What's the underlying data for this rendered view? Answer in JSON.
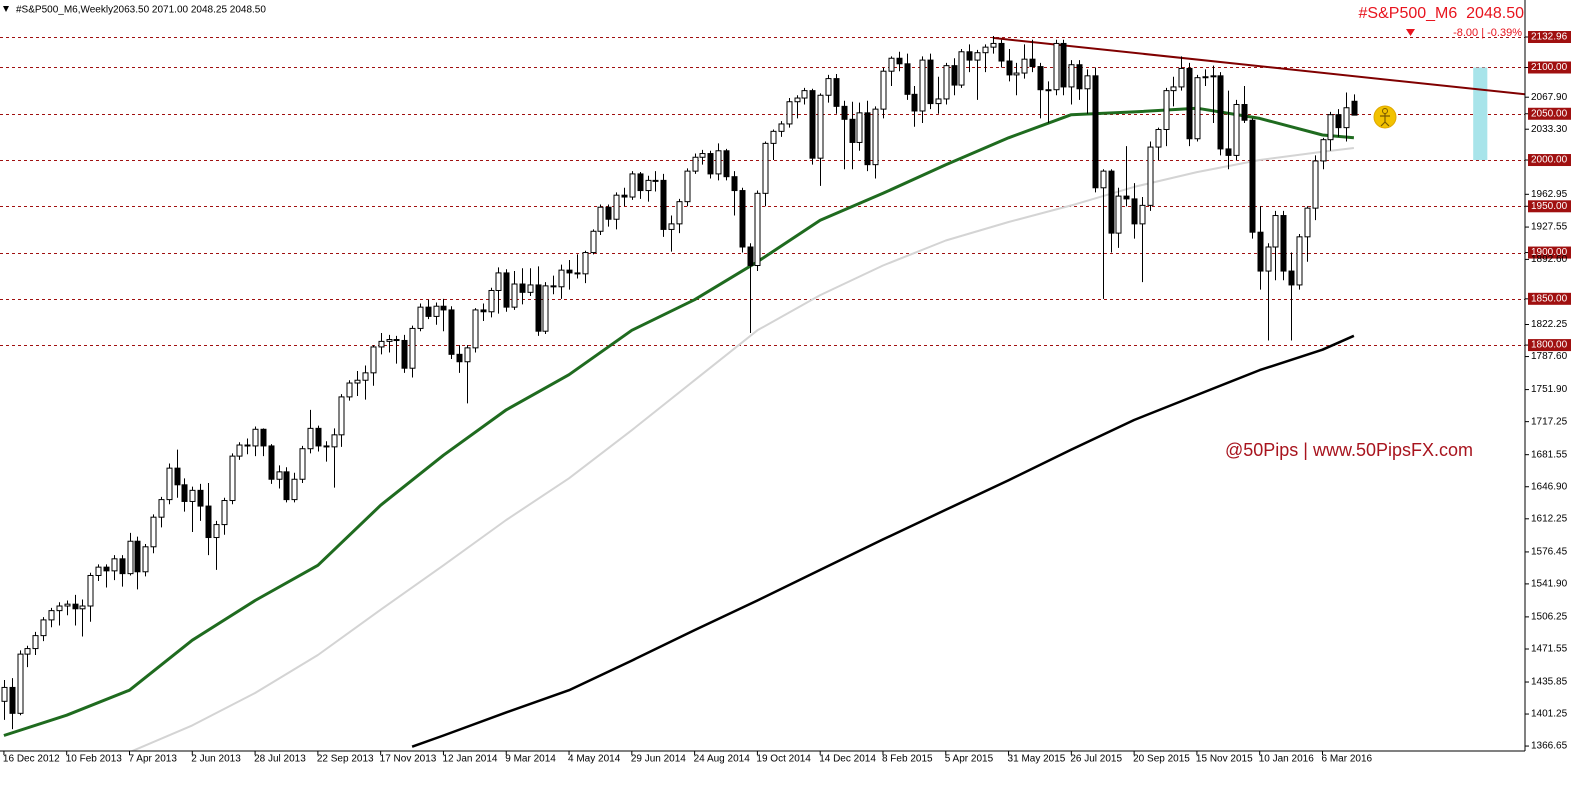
{
  "chart_data": {
    "type": "candlestick",
    "title": "#S&P500_M6,Weekly",
    "quote_ohlc": "2063.50 2071.00 2048.25 2048.50",
    "quote_label": "#S&P500_M6  2048.50",
    "quote_change": "-8.00 | -0.39%",
    "watermark": "@50Pips | www.50PipsFX.com",
    "xlim": [
      -0.5,
      193.8
    ],
    "ylim": [
      1361.3,
      2172.95
    ],
    "xticks": [
      {
        "value": 0,
        "label": "16 Dec 2012"
      },
      {
        "value": 8,
        "label": "10 Feb 2013"
      },
      {
        "value": 16,
        "label": "7 Apr 2013"
      },
      {
        "value": 24,
        "label": "2 Jun 2013"
      },
      {
        "value": 32,
        "label": "28 Jul 2013"
      },
      {
        "value": 40,
        "label": "22 Sep 2013"
      },
      {
        "value": 48,
        "label": "17 Nov 2013"
      },
      {
        "value": 56,
        "label": "12 Jan 2014"
      },
      {
        "value": 64,
        "label": "9 Mar 2014"
      },
      {
        "value": 72,
        "label": "4 May 2014"
      },
      {
        "value": 80,
        "label": "29 Jun 2014"
      },
      {
        "value": 88,
        "label": "24 Aug 2014"
      },
      {
        "value": 96,
        "label": "19 Oct 2014"
      },
      {
        "value": 104,
        "label": "14 Dec 2014"
      },
      {
        "value": 112,
        "label": "8 Feb 2015"
      },
      {
        "value": 120,
        "label": "5 Apr 2015"
      },
      {
        "value": 128,
        "label": "31 May 2015"
      },
      {
        "value": 136,
        "label": "26 Jul 2015"
      },
      {
        "value": 144,
        "label": "20 Sep 2015"
      },
      {
        "value": 152,
        "label": "15 Nov 2015"
      },
      {
        "value": 160,
        "label": "10 Jan 2016"
      },
      {
        "value": 168,
        "label": "6 Mar 2016"
      }
    ],
    "yticks": [
      {
        "value": 2132.96,
        "label": "2132.96"
      },
      {
        "value": 2100,
        "label": "2100.00"
      },
      {
        "value": 2067.9,
        "label": "2067.90"
      },
      {
        "value": 2050,
        "label": "2050.00"
      },
      {
        "value": 2033.3,
        "label": "2033.30"
      },
      {
        "value": 2000,
        "label": "2000.00"
      },
      {
        "value": 1962.95,
        "label": "1962.95"
      },
      {
        "value": 1950,
        "label": "1950.00"
      },
      {
        "value": 1927.55,
        "label": "1927.55"
      },
      {
        "value": 1900,
        "label": "1900.00"
      },
      {
        "value": 1892.6,
        "label": "1892.60"
      },
      {
        "value": 1850,
        "label": "1850.00"
      },
      {
        "value": 1822.25,
        "label": "1822.25"
      },
      {
        "value": 1800,
        "label": "1800.00"
      },
      {
        "value": 1787.6,
        "label": "1787.60"
      },
      {
        "value": 1751.9,
        "label": "1751.90"
      },
      {
        "value": 1717.25,
        "label": "1717.25"
      },
      {
        "value": 1681.55,
        "label": "1681.55"
      },
      {
        "value": 1646.9,
        "label": "1646.90"
      },
      {
        "value": 1612.25,
        "label": "1612.25"
      },
      {
        "value": 1576.45,
        "label": "1576.45"
      },
      {
        "value": 1541.9,
        "label": "1541.90"
      },
      {
        "value": 1506.25,
        "label": "1506.25"
      },
      {
        "value": 1471.55,
        "label": "1471.55"
      },
      {
        "value": 1435.85,
        "label": "1435.85"
      },
      {
        "value": 1401.25,
        "label": "1401.25"
      },
      {
        "value": 1366.65,
        "label": "1366.65"
      }
    ],
    "levels": [
      2132.96,
      2100,
      2050,
      2000,
      1950,
      1900,
      1850,
      1800
    ],
    "level_color": "#a01010",
    "bull_color": "#ffffff",
    "bear_color": "#000000",
    "candles": [
      [
        1415,
        1438,
        1395,
        1430
      ],
      [
        1430,
        1440,
        1385,
        1402
      ],
      [
        1402,
        1470,
        1400,
        1466
      ],
      [
        1466,
        1475,
        1452,
        1472
      ],
      [
        1472,
        1490,
        1465,
        1486
      ],
      [
        1486,
        1506,
        1480,
        1503
      ],
      [
        1503,
        1516,
        1495,
        1513
      ],
      [
        1513,
        1522,
        1497,
        1518
      ],
      [
        1518,
        1524,
        1508,
        1520
      ],
      [
        1520,
        1530,
        1497,
        1515
      ],
      [
        1515,
        1525,
        1485,
        1518
      ],
      [
        1518,
        1554,
        1501,
        1551
      ],
      [
        1551,
        1563,
        1545,
        1560
      ],
      [
        1560,
        1563,
        1538,
        1556
      ],
      [
        1556,
        1573,
        1546,
        1569
      ],
      [
        1569,
        1573,
        1539,
        1553
      ],
      [
        1553,
        1597,
        1551,
        1588
      ],
      [
        1588,
        1593,
        1536,
        1555
      ],
      [
        1555,
        1585,
        1550,
        1582
      ],
      [
        1582,
        1617,
        1575,
        1614
      ],
      [
        1614,
        1636,
        1603,
        1633
      ],
      [
        1633,
        1672,
        1628,
        1667
      ],
      [
        1667,
        1687,
        1635,
        1649
      ],
      [
        1649,
        1656,
        1620,
        1631
      ],
      [
        1631,
        1647,
        1598,
        1643
      ],
      [
        1643,
        1650,
        1610,
        1626
      ],
      [
        1626,
        1651,
        1573,
        1592
      ],
      [
        1592,
        1610,
        1557,
        1606
      ],
      [
        1606,
        1635,
        1595,
        1632
      ],
      [
        1632,
        1683,
        1628,
        1680
      ],
      [
        1680,
        1695,
        1676,
        1692
      ],
      [
        1692,
        1699,
        1682,
        1691
      ],
      [
        1691,
        1712,
        1680,
        1709
      ],
      [
        1709,
        1710,
        1680,
        1691
      ],
      [
        1691,
        1693,
        1650,
        1655
      ],
      [
        1655,
        1670,
        1645,
        1663
      ],
      [
        1663,
        1668,
        1630,
        1633
      ],
      [
        1633,
        1662,
        1630,
        1655
      ],
      [
        1655,
        1691,
        1651,
        1688
      ],
      [
        1688,
        1730,
        1683,
        1710
      ],
      [
        1710,
        1713,
        1685,
        1691
      ],
      [
        1691,
        1696,
        1674,
        1690
      ],
      [
        1690,
        1710,
        1646,
        1703
      ],
      [
        1703,
        1747,
        1690,
        1744
      ],
      [
        1744,
        1762,
        1740,
        1759
      ],
      [
        1759,
        1772,
        1745,
        1762
      ],
      [
        1762,
        1778,
        1741,
        1770
      ],
      [
        1770,
        1800,
        1756,
        1798
      ],
      [
        1798,
        1813,
        1790,
        1804
      ],
      [
        1804,
        1811,
        1792,
        1806
      ],
      [
        1806,
        1810,
        1780,
        1805
      ],
      [
        1805,
        1811,
        1770,
        1775
      ],
      [
        1775,
        1821,
        1765,
        1818
      ],
      [
        1818,
        1845,
        1815,
        1841
      ],
      [
        1841,
        1849,
        1828,
        1831
      ],
      [
        1831,
        1846,
        1822,
        1842
      ],
      [
        1842,
        1850,
        1815,
        1838
      ],
      [
        1838,
        1842,
        1785,
        1790
      ],
      [
        1790,
        1800,
        1770,
        1782
      ],
      [
        1782,
        1800,
        1737,
        1797
      ],
      [
        1797,
        1840,
        1792,
        1838
      ],
      [
        1838,
        1845,
        1826,
        1836
      ],
      [
        1836,
        1862,
        1830,
        1859
      ],
      [
        1859,
        1884,
        1834,
        1878
      ],
      [
        1878,
        1882,
        1836,
        1841
      ],
      [
        1841,
        1880,
        1838,
        1866
      ],
      [
        1866,
        1883,
        1844,
        1857
      ],
      [
        1857,
        1883,
        1853,
        1865
      ],
      [
        1865,
        1885,
        1810,
        1815
      ],
      [
        1815,
        1868,
        1812,
        1864
      ],
      [
        1864,
        1875,
        1855,
        1863
      ],
      [
        1863,
        1887,
        1850,
        1881
      ],
      [
        1881,
        1892,
        1860,
        1878
      ],
      [
        1878,
        1898,
        1872,
        1877
      ],
      [
        1877,
        1902,
        1867,
        1900
      ],
      [
        1900,
        1925,
        1898,
        1923
      ],
      [
        1923,
        1952,
        1919,
        1949
      ],
      [
        1949,
        1952,
        1928,
        1936
      ],
      [
        1936,
        1965,
        1925,
        1962
      ],
      [
        1962,
        1970,
        1950,
        1960
      ],
      [
        1960,
        1988,
        1957,
        1985
      ],
      [
        1985,
        1987,
        1958,
        1967
      ],
      [
        1967,
        1983,
        1955,
        1978
      ],
      [
        1978,
        1988,
        1966,
        1978
      ],
      [
        1978,
        1985,
        1917,
        1925
      ],
      [
        1925,
        1940,
        1901,
        1931
      ],
      [
        1931,
        1958,
        1921,
        1955
      ],
      [
        1955,
        1991,
        1950,
        1988
      ],
      [
        1988,
        2007,
        1985,
        2003
      ],
      [
        2003,
        2011,
        1995,
        2007
      ],
      [
        2007,
        2010,
        1980,
        1985
      ],
      [
        1985,
        2018,
        1978,
        2010
      ],
      [
        2010,
        2012,
        1978,
        1982
      ],
      [
        1982,
        1988,
        1940,
        1967
      ],
      [
        1967,
        1970,
        1900,
        1906
      ],
      [
        1906,
        1910,
        1813,
        1886
      ],
      [
        1886,
        1967,
        1880,
        1964
      ],
      [
        1964,
        2020,
        1950,
        2018
      ],
      [
        2018,
        2033,
        2000,
        2031
      ],
      [
        2031,
        2042,
        2025,
        2039
      ],
      [
        2039,
        2067,
        2035,
        2063
      ],
      [
        2063,
        2070,
        2045,
        2067
      ],
      [
        2067,
        2078,
        2060,
        2075
      ],
      [
        2075,
        2077,
        1995,
        2002
      ],
      [
        2002,
        2072,
        1972,
        2070
      ],
      [
        2070,
        2092,
        2062,
        2088
      ],
      [
        2088,
        2093,
        2050,
        2058
      ],
      [
        2058,
        2064,
        1990,
        2044
      ],
      [
        2044,
        2063,
        1990,
        2019
      ],
      [
        2019,
        2062,
        2010,
        2051
      ],
      [
        2051,
        2064,
        1988,
        1995
      ],
      [
        1995,
        2058,
        1980,
        2055
      ],
      [
        2055,
        2100,
        2045,
        2096
      ],
      [
        2096,
        2112,
        2080,
        2110
      ],
      [
        2110,
        2117,
        2096,
        2104
      ],
      [
        2104,
        2115,
        2065,
        2071
      ],
      [
        2071,
        2080,
        2036,
        2053
      ],
      [
        2053,
        2112,
        2040,
        2108
      ],
      [
        2108,
        2115,
        2055,
        2061
      ],
      [
        2061,
        2090,
        2050,
        2066
      ],
      [
        2066,
        2105,
        2060,
        2102
      ],
      [
        2102,
        2110,
        2070,
        2081
      ],
      [
        2081,
        2120,
        2078,
        2117
      ],
      [
        2117,
        2125,
        2095,
        2108
      ],
      [
        2108,
        2119,
        2065,
        2116
      ],
      [
        2116,
        2125,
        2095,
        2122
      ],
      [
        2122,
        2134,
        2115,
        2126
      ],
      [
        2126,
        2130,
        2100,
        2107
      ],
      [
        2107,
        2120,
        2085,
        2092
      ],
      [
        2092,
        2105,
        2070,
        2094
      ],
      [
        2094,
        2125,
        2088,
        2109
      ],
      [
        2109,
        2130,
        2095,
        2101
      ],
      [
        2101,
        2105,
        2045,
        2076
      ],
      [
        2076,
        2085,
        2040,
        2076
      ],
      [
        2076,
        2130,
        2070,
        2126
      ],
      [
        2126,
        2130,
        2070,
        2079
      ],
      [
        2079,
        2108,
        2060,
        2103
      ],
      [
        2103,
        2108,
        2065,
        2077
      ],
      [
        2077,
        2098,
        2050,
        2091
      ],
      [
        2091,
        2100,
        1965,
        1970
      ],
      [
        1970,
        1990,
        1850,
        1988
      ],
      [
        1988,
        1990,
        1900,
        1921
      ],
      [
        1921,
        1970,
        1905,
        1961
      ],
      [
        1961,
        2015,
        1950,
        1958
      ],
      [
        1958,
        1975,
        1915,
        1931
      ],
      [
        1931,
        1960,
        1868,
        1951
      ],
      [
        1951,
        2020,
        1945,
        2014
      ],
      [
        2014,
        2035,
        2000,
        2033
      ],
      [
        2033,
        2078,
        2015,
        2075
      ],
      [
        2075,
        2090,
        2058,
        2079
      ],
      [
        2079,
        2112,
        2075,
        2099
      ],
      [
        2099,
        2105,
        2015,
        2023
      ],
      [
        2023,
        2092,
        2020,
        2089
      ],
      [
        2089,
        2098,
        2080,
        2090
      ],
      [
        2090,
        2102,
        2040,
        2091
      ],
      [
        2091,
        2095,
        2005,
        2012
      ],
      [
        2012,
        2075,
        1990,
        2005
      ],
      [
        2005,
        2065,
        2000,
        2060
      ],
      [
        2060,
        2080,
        2040,
        2043
      ],
      [
        2043,
        2045,
        1915,
        1922
      ],
      [
        1922,
        1950,
        1860,
        1880
      ],
      [
        1880,
        1910,
        1805,
        1906
      ],
      [
        1906,
        1945,
        1870,
        1940
      ],
      [
        1940,
        1945,
        1870,
        1880
      ],
      [
        1880,
        1900,
        1805,
        1865
      ],
      [
        1865,
        1920,
        1860,
        1917
      ],
      [
        1917,
        1950,
        1890,
        1948
      ],
      [
        1948,
        2005,
        1935,
        1999
      ],
      [
        1999,
        2024,
        1990,
        2022
      ],
      [
        2022,
        2052,
        2010,
        2049
      ],
      [
        2049,
        2055,
        2025,
        2035
      ],
      [
        2035,
        2073,
        2020,
        2056.5
      ],
      [
        2063.5,
        2071,
        2048.25,
        2048.5
      ]
    ],
    "lines": [
      {
        "color": "#1f6b1f",
        "width": 3,
        "x": [
          0,
          8,
          16,
          24,
          32,
          40,
          48,
          56,
          64,
          72,
          80,
          88,
          96,
          104,
          112,
          120,
          128,
          136,
          144,
          152,
          160,
          168,
          172
        ],
        "values": [
          1378,
          1400,
          1427,
          1481,
          1524,
          1562,
          1627,
          1681,
          1730,
          1768,
          1816,
          1849,
          1890,
          1935,
          1964,
          1995,
          2024,
          2049,
          2052,
          2056,
          2045,
          2027,
          2024
        ]
      },
      {
        "color": "#d4d4d4",
        "width": 2,
        "x": [
          16,
          24,
          32,
          40,
          48,
          56,
          64,
          72,
          80,
          88,
          96,
          104,
          112,
          120,
          128,
          136,
          144,
          152,
          160,
          168,
          172
        ],
        "values": [
          1360,
          1389,
          1424,
          1465,
          1514,
          1562,
          1611,
          1656,
          1708,
          1762,
          1816,
          1854,
          1886,
          1913,
          1933,
          1951,
          1971,
          1987,
          2000,
          2009,
          2013
        ]
      },
      {
        "color": "#000000",
        "width": 2.5,
        "x": [
          52,
          56,
          64,
          72,
          80,
          88,
          96,
          104,
          112,
          120,
          128,
          136,
          144,
          152,
          160,
          168,
          172
        ],
        "values": [
          1366,
          1378,
          1403,
          1427,
          1459,
          1492,
          1524,
          1557,
          1590,
          1622,
          1654,
          1687,
          1719,
          1746,
          1773,
          1795,
          1810
        ]
      },
      {
        "color": "#800000",
        "width": 2,
        "x": [
          126,
          193.8
        ],
        "values": [
          2132,
          2071
        ]
      }
    ],
    "zone": {
      "color": "#a8e4ea",
      "x": [
        187.2,
        189
      ],
      "values": [
        2000,
        2100
      ]
    }
  }
}
